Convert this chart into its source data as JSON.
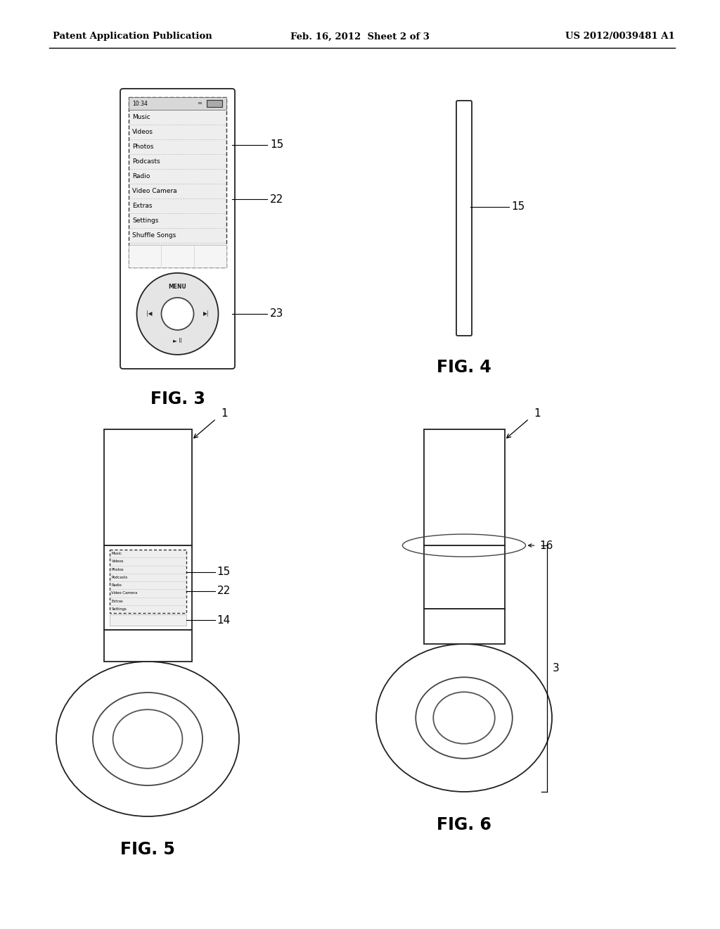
{
  "bg_color": "#ffffff",
  "header_left": "Patent Application Publication",
  "header_mid": "Feb. 16, 2012  Sheet 2 of 3",
  "header_right": "US 2012/0039481 A1",
  "fig3_label": "FIG. 3",
  "fig4_label": "FIG. 4",
  "fig5_label": "FIG. 5",
  "fig6_label": "FIG. 6",
  "menu_items": [
    "Music",
    "Videos",
    "Photos",
    "Podcasts",
    "Radio",
    "Video Camera",
    "Extras",
    "Settings",
    "Shuffle Songs"
  ]
}
